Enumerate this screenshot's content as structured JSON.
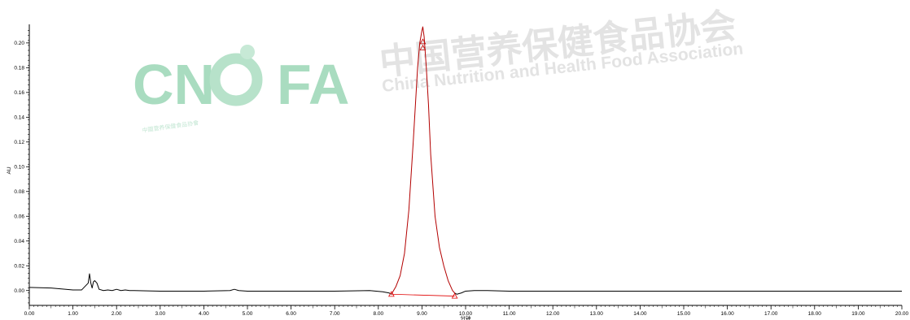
{
  "watermark": {
    "logo_text_left": "CN",
    "logo_text_right": "FA",
    "logo_subtitle": "中國营养保健食品协會",
    "chinese_name": "中国营养保健食品协会",
    "english_name": "China Nutrition and Health Food Association",
    "logo_color": "#a9dcc0",
    "text_color": "#e3e3e3"
  },
  "chart_data": {
    "type": "line",
    "title": "",
    "xlabel": "分钟",
    "ylabel": "AU",
    "xlim": [
      0,
      20
    ],
    "ylim": [
      -0.012,
      0.215
    ],
    "x_ticks": [
      "0.00",
      "1.00",
      "2.00",
      "3.00",
      "4.00",
      "5.00",
      "6.00",
      "7.00",
      "8.00",
      "9.00",
      "10.00",
      "11.00",
      "12.00",
      "13.00",
      "14.00",
      "15.00",
      "16.00",
      "17.00",
      "18.00",
      "19.00",
      "20.00"
    ],
    "y_ticks": [
      "0.00",
      "0.02",
      "0.04",
      "0.06",
      "0.08",
      "0.10",
      "0.12",
      "0.14",
      "0.16",
      "0.18",
      "0.20"
    ],
    "grid": false,
    "series": [
      {
        "color": "#000000",
        "x": [
          0.0,
          0.5,
          1.0,
          1.2,
          1.35,
          1.38,
          1.41,
          1.44,
          1.47,
          1.5,
          1.55,
          1.6,
          1.7,
          1.8,
          1.9,
          2.0,
          2.1,
          2.2,
          2.3,
          2.4,
          3.0,
          4.0,
          4.6,
          4.7,
          4.8,
          5.0,
          6.0,
          7.0,
          7.8,
          8.1,
          8.25,
          8.3
        ],
        "y": [
          0.0025,
          0.002,
          0.0005,
          0.0005,
          0.006,
          0.0135,
          0.006,
          0.002,
          0.007,
          0.008,
          0.006,
          0.001,
          0.0,
          0.0005,
          0.0,
          0.001,
          0.0,
          0.0005,
          0.0,
          0.0,
          -0.0005,
          -0.0005,
          0.0,
          0.001,
          0.0,
          -0.0005,
          -0.0005,
          -0.0005,
          0.0,
          -0.001,
          -0.002,
          -0.003
        ]
      },
      {
        "color": "#b30000",
        "x": [
          8.3,
          8.4,
          8.5,
          8.6,
          8.7,
          8.8,
          8.9,
          8.95,
          9.0,
          9.02,
          9.05,
          9.1,
          9.15,
          9.2,
          9.3,
          9.4,
          9.5,
          9.6,
          9.7,
          9.75
        ],
        "y": [
          -0.003,
          0.003,
          0.012,
          0.03,
          0.065,
          0.12,
          0.18,
          0.2,
          0.21,
          0.213,
          0.205,
          0.18,
          0.15,
          0.11,
          0.06,
          0.035,
          0.02,
          0.008,
          0.0,
          -0.002
        ]
      },
      {
        "color": "#000000",
        "x": [
          9.75,
          9.8,
          9.9,
          10.0,
          10.2,
          10.5,
          11.0,
          12.0,
          13.0,
          14.0,
          15.0,
          16.0,
          17.0,
          18.0,
          19.0,
          20.0
        ],
        "y": [
          -0.002,
          -0.003,
          -0.002,
          -0.0005,
          0.0,
          0.0,
          -0.0005,
          -0.0005,
          -0.0005,
          -0.0005,
          -0.0005,
          -0.0005,
          -0.0005,
          -0.0005,
          -0.0005,
          -0.0005
        ]
      }
    ],
    "baseline": {
      "color": "#e00000",
      "x": [
        8.3,
        9.75
      ],
      "y": [
        -0.003,
        -0.0045
      ]
    },
    "markers": [
      {
        "shape": "triangle",
        "color": "#e00000",
        "x": 8.3,
        "y": -0.003
      },
      {
        "shape": "triangle",
        "color": "#e00000",
        "x": 9.75,
        "y": -0.0045
      },
      {
        "shape": "triangle",
        "color": "#c00000",
        "x": 9.02,
        "y": 0.201
      },
      {
        "shape": "triangle",
        "color": "#c00000",
        "x": 9.02,
        "y": 0.196
      }
    ]
  }
}
